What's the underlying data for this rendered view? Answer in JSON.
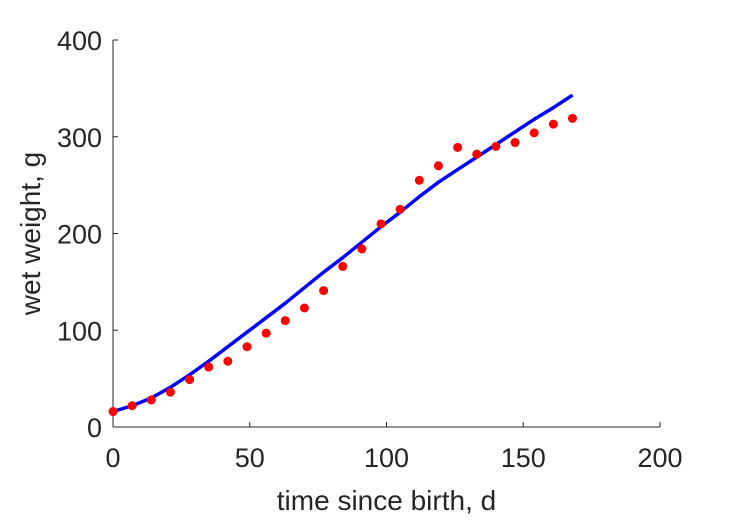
{
  "chart_data": {
    "type": "scatter",
    "xlabel": "time since birth, d",
    "ylabel": "wet weight, g",
    "xlim": [
      0,
      200
    ],
    "ylim": [
      0,
      400
    ],
    "xticks": [
      0,
      50,
      100,
      150,
      200
    ],
    "yticks": [
      0,
      100,
      200,
      300,
      400
    ],
    "grid": false,
    "colors": {
      "axis": "#262626",
      "points": "#ff0000",
      "line": "#0000ff"
    },
    "series": [
      {
        "kind": "scatter",
        "x": [
          0,
          7,
          14,
          21,
          28,
          35,
          42,
          49,
          56,
          63,
          70,
          77,
          84,
          91,
          98,
          105,
          112,
          119,
          126,
          133,
          140,
          147,
          154,
          161,
          168
        ],
        "y": [
          16,
          22,
          28,
          36,
          49,
          62,
          68,
          83,
          97,
          110,
          123,
          141,
          166,
          184,
          210,
          225,
          255,
          270,
          289,
          282,
          290,
          294,
          304,
          313,
          319
        ]
      },
      {
        "kind": "line",
        "x": [
          0,
          7,
          14,
          21,
          28,
          35,
          42,
          49,
          56,
          63,
          70,
          77,
          84,
          91,
          98,
          105,
          112,
          119,
          126,
          133,
          140,
          147,
          154,
          161,
          168
        ],
        "y": [
          16,
          22,
          30,
          41,
          54,
          68,
          83,
          98,
          113,
          128,
          144,
          160,
          175,
          191,
          207,
          222,
          238,
          253,
          266,
          279,
          292,
          305,
          318,
          330,
          343
        ]
      }
    ]
  }
}
